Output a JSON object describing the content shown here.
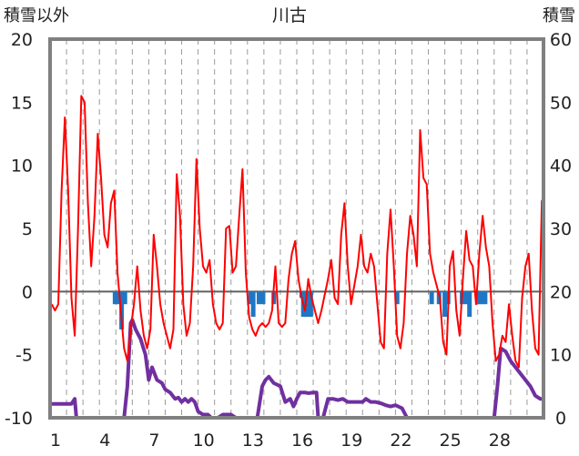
{
  "chart_data": {
    "type": "line",
    "title": "川古",
    "left_axis_label": "積雪以外",
    "right_axis_label": "積雪",
    "left_ylim": [
      -10,
      20
    ],
    "left_yticks": [
      20,
      15,
      10,
      5,
      0,
      -5,
      -10
    ],
    "right_ylim": [
      0,
      60
    ],
    "right_yticks": [
      60,
      50,
      40,
      30,
      20,
      10,
      0
    ],
    "xlim": [
      0,
      30
    ],
    "xticks": [
      1,
      4,
      7,
      10,
      13,
      16,
      19,
      22,
      25,
      28
    ],
    "grid": "vertical dashed lines at each day",
    "colors": {
      "temperature": "#ff0000",
      "snow_depth": "#7030a0",
      "precipitation": "#1f77c4",
      "frame": "#808080",
      "zero_line": "#606060"
    },
    "series": [
      {
        "key": "temperature",
        "axis": "left",
        "points": [
          [
            0.1,
            -1.0
          ],
          [
            0.3,
            -1.5
          ],
          [
            0.5,
            -1.0
          ],
          [
            0.7,
            8.0
          ],
          [
            0.9,
            13.8
          ],
          [
            1.1,
            8.0
          ],
          [
            1.3,
            -0.5
          ],
          [
            1.5,
            -3.5
          ],
          [
            1.7,
            5.0
          ],
          [
            1.9,
            15.5
          ],
          [
            2.1,
            15.0
          ],
          [
            2.3,
            7.0
          ],
          [
            2.5,
            2.0
          ],
          [
            2.7,
            6.0
          ],
          [
            2.9,
            12.5
          ],
          [
            3.1,
            9.0
          ],
          [
            3.3,
            4.5
          ],
          [
            3.5,
            3.5
          ],
          [
            3.7,
            7.0
          ],
          [
            3.9,
            8.0
          ],
          [
            4.1,
            1.5
          ],
          [
            4.3,
            -1.5
          ],
          [
            4.5,
            -4.5
          ],
          [
            4.7,
            -5.5
          ],
          [
            4.9,
            -3.0
          ],
          [
            5.1,
            -1.0
          ],
          [
            5.3,
            2.0
          ],
          [
            5.5,
            -1.5
          ],
          [
            5.7,
            -3.5
          ],
          [
            5.9,
            -4.5
          ],
          [
            6.1,
            -3.0
          ],
          [
            6.3,
            4.5
          ],
          [
            6.5,
            2.0
          ],
          [
            6.7,
            -1.0
          ],
          [
            6.9,
            -2.5
          ],
          [
            7.1,
            -3.5
          ],
          [
            7.3,
            -4.5
          ],
          [
            7.5,
            -3.0
          ],
          [
            7.7,
            9.3
          ],
          [
            7.9,
            6.0
          ],
          [
            8.1,
            -1.0
          ],
          [
            8.3,
            -3.5
          ],
          [
            8.5,
            -2.5
          ],
          [
            8.7,
            2.0
          ],
          [
            8.9,
            10.5
          ],
          [
            9.1,
            5.0
          ],
          [
            9.3,
            2.0
          ],
          [
            9.5,
            1.5
          ],
          [
            9.7,
            2.5
          ],
          [
            9.9,
            -1.0
          ],
          [
            10.1,
            -2.5
          ],
          [
            10.3,
            -3.0
          ],
          [
            10.5,
            -2.5
          ],
          [
            10.7,
            5.0
          ],
          [
            10.9,
            5.2
          ],
          [
            11.1,
            1.5
          ],
          [
            11.3,
            2.0
          ],
          [
            11.5,
            6.0
          ],
          [
            11.7,
            9.7
          ],
          [
            11.9,
            1.5
          ],
          [
            12.1,
            -2.0
          ],
          [
            12.3,
            -3.0
          ],
          [
            12.5,
            -3.5
          ],
          [
            12.7,
            -2.8
          ],
          [
            12.9,
            -2.5
          ],
          [
            13.1,
            -2.8
          ],
          [
            13.3,
            -2.5
          ],
          [
            13.5,
            -1.5
          ],
          [
            13.7,
            2.0
          ],
          [
            13.9,
            -2.5
          ],
          [
            14.1,
            -2.8
          ],
          [
            14.3,
            -2.5
          ],
          [
            14.5,
            1.0
          ],
          [
            14.7,
            3.0
          ],
          [
            14.9,
            4.0
          ],
          [
            15.1,
            1.0
          ],
          [
            15.3,
            -0.5
          ],
          [
            15.5,
            -1.5
          ],
          [
            15.7,
            1.0
          ],
          [
            15.9,
            -0.5
          ],
          [
            16.1,
            -1.5
          ],
          [
            16.3,
            -2.5
          ],
          [
            16.5,
            -1.5
          ],
          [
            16.9,
            1.0
          ],
          [
            17.1,
            2.5
          ],
          [
            17.3,
            -0.5
          ],
          [
            17.5,
            -1.0
          ],
          [
            17.7,
            4.5
          ],
          [
            17.9,
            7.0
          ],
          [
            18.1,
            2.0
          ],
          [
            18.3,
            -1.0
          ],
          [
            18.5,
            0.5
          ],
          [
            18.7,
            2.0
          ],
          [
            18.9,
            4.5
          ],
          [
            19.1,
            2.0
          ],
          [
            19.3,
            1.5
          ],
          [
            19.5,
            3.0
          ],
          [
            19.7,
            2.0
          ],
          [
            19.9,
            -1.0
          ],
          [
            20.1,
            -4.0
          ],
          [
            20.3,
            -4.5
          ],
          [
            20.5,
            3.0
          ],
          [
            20.7,
            6.5
          ],
          [
            20.9,
            2.0
          ],
          [
            21.1,
            -3.5
          ],
          [
            21.3,
            -4.5
          ],
          [
            21.5,
            -2.5
          ],
          [
            21.7,
            3.0
          ],
          [
            21.9,
            6.0
          ],
          [
            22.1,
            4.5
          ],
          [
            22.3,
            2.0
          ],
          [
            22.5,
            12.8
          ],
          [
            22.7,
            9.0
          ],
          [
            22.9,
            8.5
          ],
          [
            23.1,
            3.0
          ],
          [
            23.3,
            1.5
          ],
          [
            23.5,
            0.5
          ],
          [
            23.7,
            -0.5
          ],
          [
            23.9,
            -4.0
          ],
          [
            24.1,
            -5.0
          ],
          [
            24.3,
            2.0
          ],
          [
            24.5,
            3.2
          ],
          [
            24.7,
            -1.5
          ],
          [
            24.9,
            -3.5
          ],
          [
            25.1,
            1.0
          ],
          [
            25.3,
            4.8
          ],
          [
            25.5,
            2.5
          ],
          [
            25.7,
            2.0
          ],
          [
            25.9,
            -1.0
          ],
          [
            26.1,
            3.0
          ],
          [
            26.3,
            6.0
          ],
          [
            26.5,
            3.5
          ],
          [
            26.7,
            2.0
          ],
          [
            26.9,
            -2.5
          ],
          [
            27.1,
            -5.5
          ],
          [
            27.3,
            -5.0
          ],
          [
            27.5,
            -3.5
          ],
          [
            27.7,
            -4.0
          ],
          [
            27.9,
            -1.0
          ],
          [
            28.1,
            -3.5
          ],
          [
            28.3,
            -5.5
          ],
          [
            28.5,
            -6.0
          ],
          [
            28.7,
            -0.5
          ],
          [
            28.9,
            2.0
          ],
          [
            29.1,
            3.0
          ],
          [
            29.3,
            -1.5
          ],
          [
            29.5,
            -4.5
          ],
          [
            29.7,
            -5.0
          ],
          [
            29.9,
            7.2
          ],
          [
            30.0,
            -1.5
          ]
        ]
      },
      {
        "key": "snow_depth",
        "axis": "right",
        "points": [
          [
            0.0,
            2.2
          ],
          [
            1.3,
            2.2
          ],
          [
            1.5,
            3.0
          ],
          [
            1.6,
            0.0
          ],
          [
            4.5,
            0.0
          ],
          [
            4.7,
            5.0
          ],
          [
            4.9,
            15.0
          ],
          [
            5.0,
            15.5
          ],
          [
            5.2,
            14.0
          ],
          [
            5.5,
            12.5
          ],
          [
            5.8,
            10.0
          ],
          [
            6.0,
            6.0
          ],
          [
            6.2,
            8.0
          ],
          [
            6.5,
            6.0
          ],
          [
            6.8,
            5.5
          ],
          [
            7.0,
            4.5
          ],
          [
            7.3,
            4.0
          ],
          [
            7.6,
            3.0
          ],
          [
            7.8,
            3.2
          ],
          [
            8.0,
            2.5
          ],
          [
            8.2,
            3.0
          ],
          [
            8.4,
            2.5
          ],
          [
            8.6,
            3.0
          ],
          [
            8.8,
            2.5
          ],
          [
            9.0,
            1.0
          ],
          [
            9.3,
            0.5
          ],
          [
            9.6,
            0.5
          ],
          [
            9.8,
            0.0
          ],
          [
            10.2,
            0.0
          ],
          [
            10.5,
            0.5
          ],
          [
            10.8,
            0.5
          ],
          [
            11.0,
            0.5
          ],
          [
            11.3,
            0.0
          ],
          [
            12.6,
            0.0
          ],
          [
            12.9,
            5.0
          ],
          [
            13.1,
            6.0
          ],
          [
            13.3,
            6.5
          ],
          [
            13.6,
            5.5
          ],
          [
            14.0,
            5.0
          ],
          [
            14.3,
            2.5
          ],
          [
            14.6,
            3.0
          ],
          [
            14.8,
            1.8
          ],
          [
            15.0,
            3.0
          ],
          [
            15.2,
            4.0
          ],
          [
            15.5,
            4.0
          ],
          [
            15.7,
            3.9
          ],
          [
            16.0,
            4.0
          ],
          [
            16.2,
            4.0
          ],
          [
            16.3,
            0.0
          ],
          [
            16.6,
            0.0
          ],
          [
            16.9,
            3.0
          ],
          [
            17.2,
            3.0
          ],
          [
            17.5,
            2.8
          ],
          [
            17.8,
            3.0
          ],
          [
            18.1,
            2.5
          ],
          [
            18.4,
            2.5
          ],
          [
            18.7,
            2.5
          ],
          [
            19.0,
            2.5
          ],
          [
            19.2,
            3.0
          ],
          [
            19.5,
            2.5
          ],
          [
            19.8,
            2.5
          ],
          [
            20.1,
            2.3
          ],
          [
            20.4,
            2.0
          ],
          [
            20.7,
            1.8
          ],
          [
            21.0,
            2.0
          ],
          [
            21.4,
            1.5
          ],
          [
            21.7,
            0.0
          ],
          [
            27.0,
            0.0
          ],
          [
            27.2,
            5.0
          ],
          [
            27.4,
            11.0
          ],
          [
            27.7,
            10.5
          ],
          [
            28.0,
            9.0
          ],
          [
            28.3,
            8.0
          ],
          [
            28.6,
            7.0
          ],
          [
            28.9,
            6.0
          ],
          [
            29.2,
            5.0
          ],
          [
            29.5,
            3.5
          ],
          [
            29.8,
            3.0
          ],
          [
            30.0,
            3.0
          ]
        ]
      },
      {
        "key": "precipitation",
        "axis": "left",
        "kind": "bars_below_zero",
        "points": [
          [
            3.95,
            -1.0
          ],
          [
            4.15,
            -1.0
          ],
          [
            4.35,
            -3.0
          ],
          [
            4.55,
            -1.0
          ],
          [
            12.2,
            -1.0
          ],
          [
            12.35,
            -2.0
          ],
          [
            12.7,
            -1.0
          ],
          [
            12.95,
            -1.0
          ],
          [
            13.6,
            -1.0
          ],
          [
            15.3,
            -0.5
          ],
          [
            15.4,
            -2.0
          ],
          [
            15.55,
            -2.0
          ],
          [
            15.7,
            -2.0
          ],
          [
            15.85,
            -2.0
          ],
          [
            21.1,
            -1.0
          ],
          [
            23.2,
            -1.0
          ],
          [
            23.65,
            -1.0
          ],
          [
            24.0,
            -2.0
          ],
          [
            24.2,
            -1.0
          ],
          [
            25.05,
            -1.0
          ],
          [
            25.25,
            -1.0
          ],
          [
            25.5,
            -2.0
          ],
          [
            26.05,
            -1.0
          ],
          [
            26.25,
            -1.0
          ],
          [
            26.45,
            -1.0
          ]
        ]
      }
    ]
  }
}
